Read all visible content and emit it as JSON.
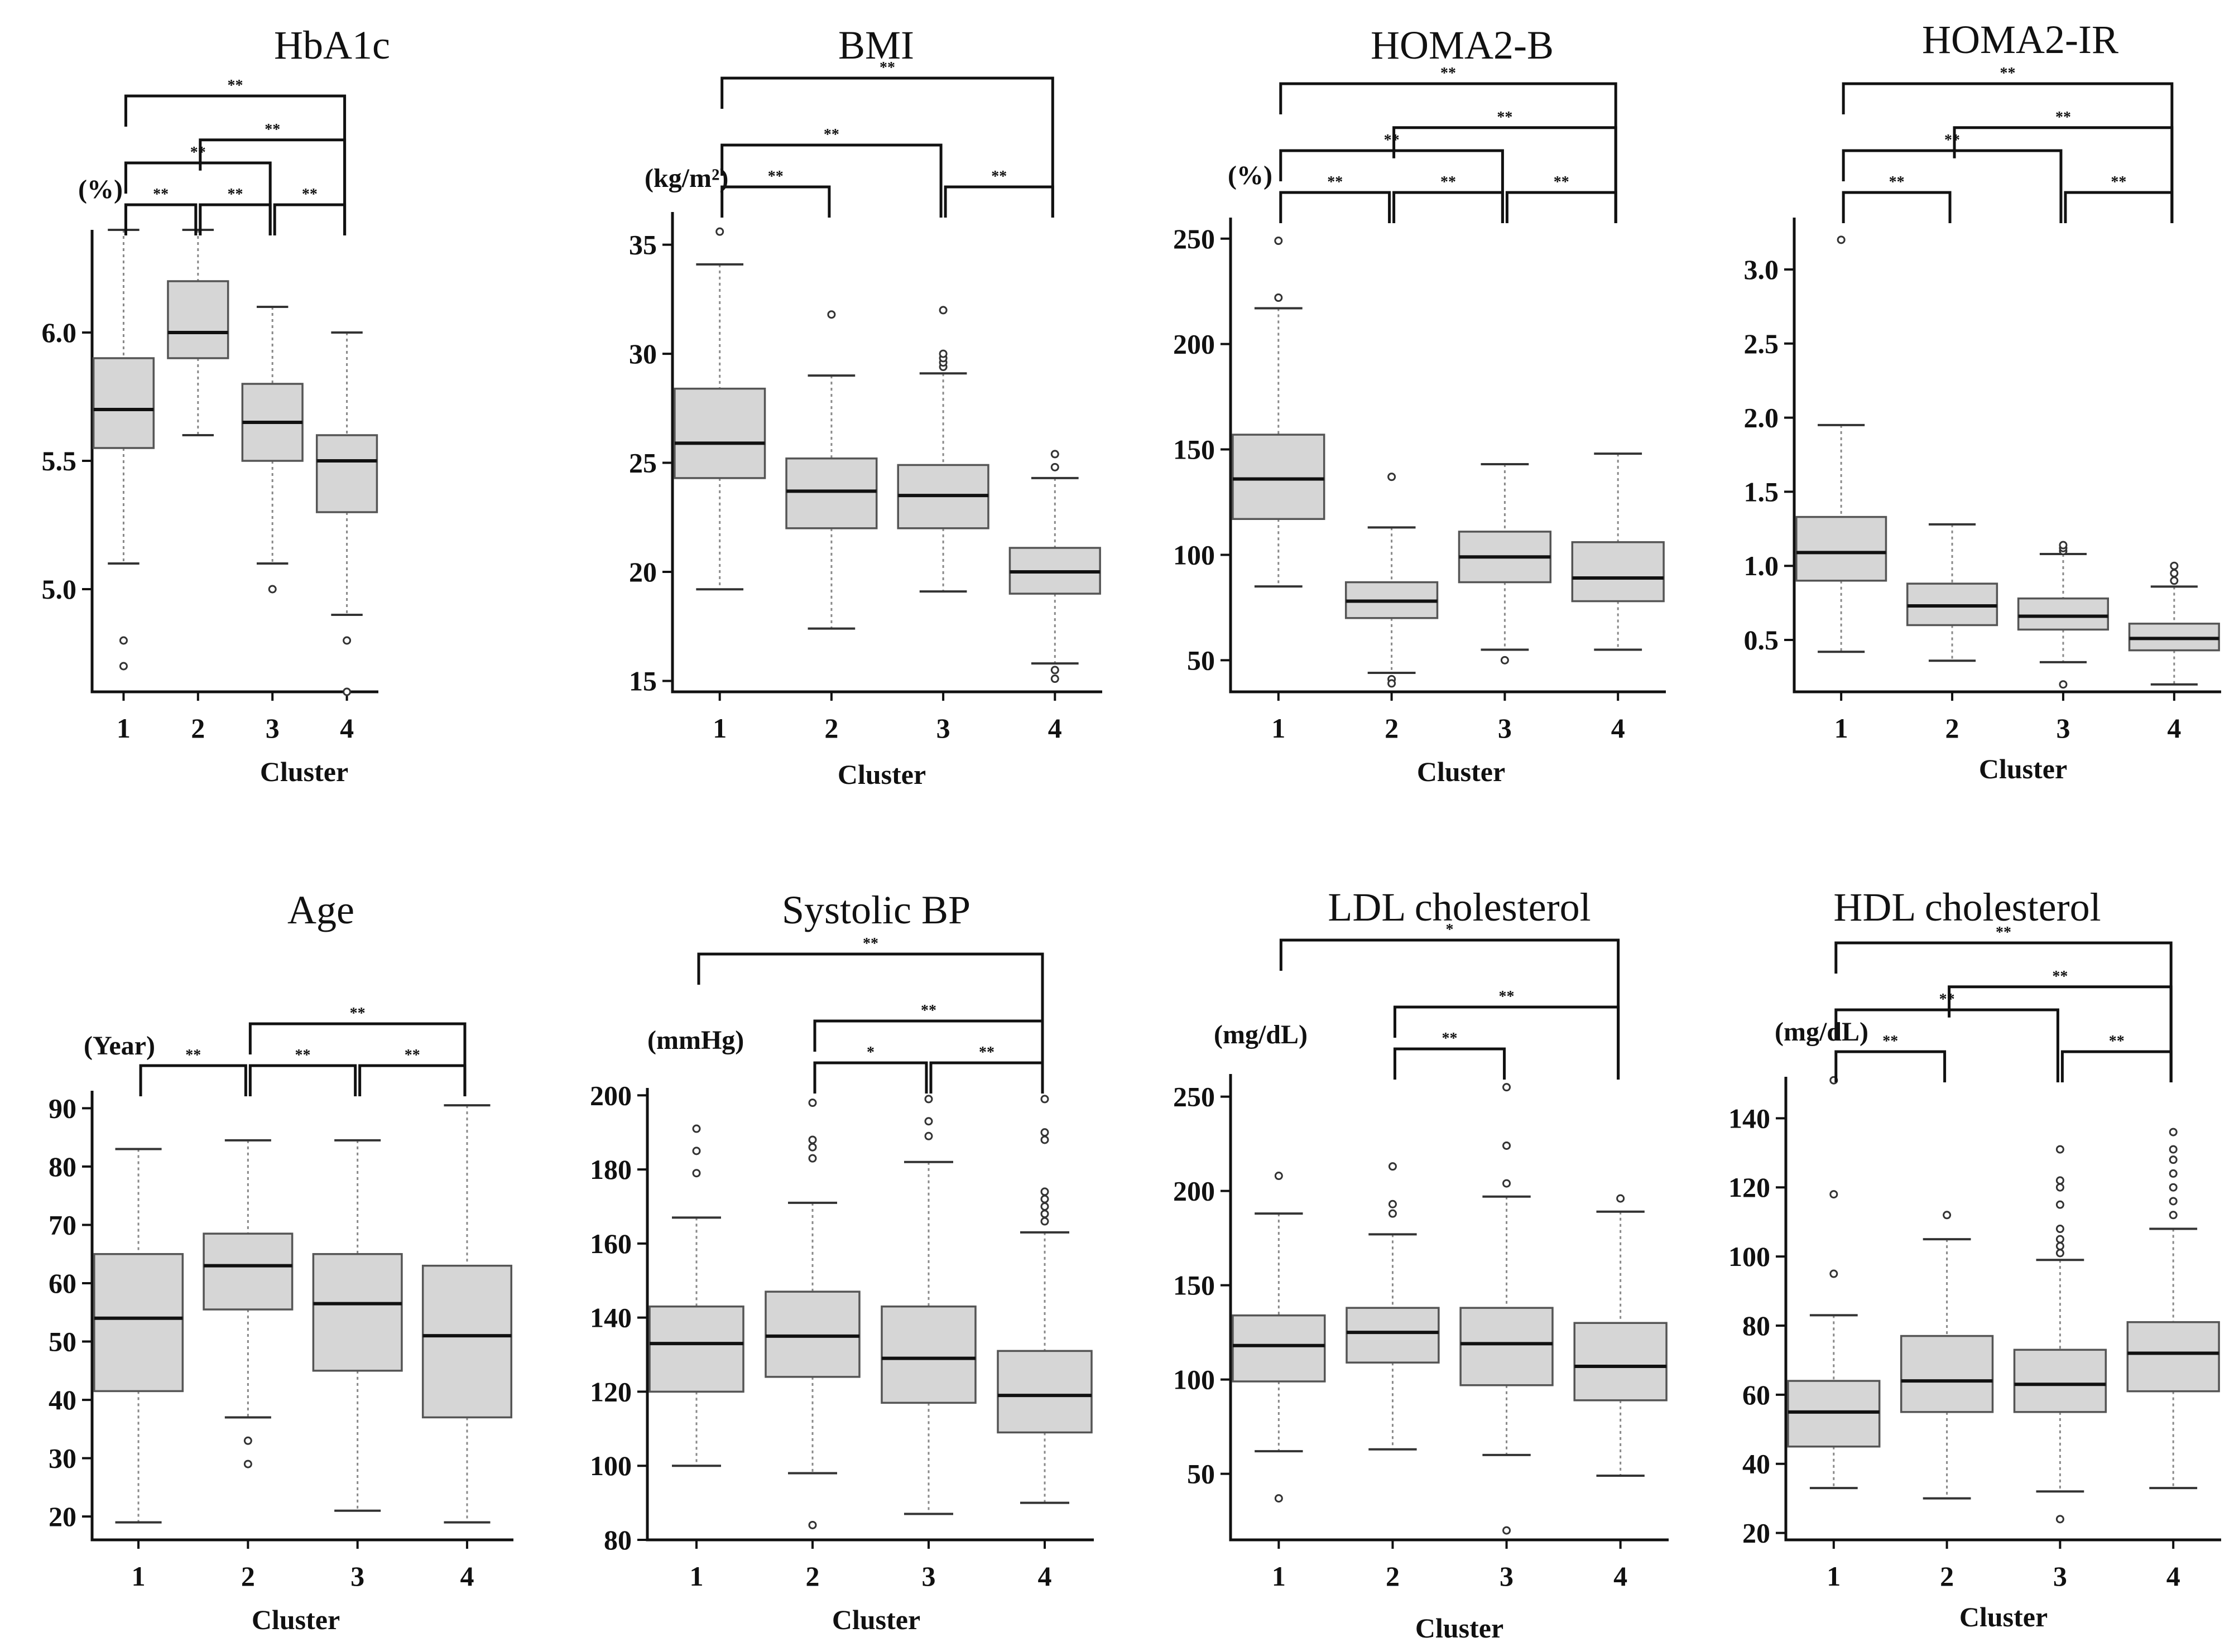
{
  "chart_data": [
    {
      "type": "box",
      "title": "HbA1c",
      "unit": "(%)",
      "xlabel": "Cluster",
      "categories": [
        "1",
        "2",
        "3",
        "4"
      ],
      "ylim": [
        4.6,
        6.4
      ],
      "yticks": [
        5.0,
        5.5,
        6.0
      ],
      "ytick_labels": [
        "5.0",
        "5.5",
        "6.0"
      ],
      "boxes": [
        {
          "q1": 5.55,
          "median": 5.7,
          "q3": 5.9,
          "whisker_low": 5.1,
          "whisker_high": 6.4,
          "outliers": [
            4.8,
            4.7
          ]
        },
        {
          "q1": 5.9,
          "median": 6.0,
          "q3": 6.2,
          "whisker_low": 5.6,
          "whisker_high": 6.4,
          "outliers": []
        },
        {
          "q1": 5.5,
          "median": 5.65,
          "q3": 5.8,
          "whisker_low": 5.1,
          "whisker_high": 6.1,
          "outliers": [
            5.0
          ]
        },
        {
          "q1": 5.3,
          "median": 5.5,
          "q3": 5.6,
          "whisker_low": 4.9,
          "whisker_high": 6.0,
          "outliers": [
            4.8,
            4.6
          ]
        }
      ],
      "significance": [
        {
          "from": 1,
          "to": 2,
          "label": "**"
        },
        {
          "from": 2,
          "to": 3,
          "label": "**"
        },
        {
          "from": 3,
          "to": 4,
          "label": "**"
        },
        {
          "from": 1,
          "to": 3,
          "label": "**"
        },
        {
          "from": 2,
          "to": 4,
          "label": "**"
        },
        {
          "from": 1,
          "to": 4,
          "label": "**"
        }
      ]
    },
    {
      "type": "box",
      "title": "BMI",
      "unit": "(kg/m²)",
      "xlabel": "Cluster",
      "categories": [
        "1",
        "2",
        "3",
        "4"
      ],
      "ylim": [
        14.5,
        36.5
      ],
      "yticks": [
        15,
        20,
        25,
        30,
        35
      ],
      "ytick_labels": [
        "15",
        "20",
        "25",
        "30",
        "35"
      ],
      "boxes": [
        {
          "q1": 24.3,
          "median": 25.9,
          "q3": 28.4,
          "whisker_low": 19.2,
          "whisker_high": 34.1,
          "outliers": [
            35.6
          ]
        },
        {
          "q1": 22.0,
          "median": 23.7,
          "q3": 25.2,
          "whisker_low": 17.4,
          "whisker_high": 29.0,
          "outliers": [
            31.8
          ]
        },
        {
          "q1": 22.0,
          "median": 23.5,
          "q3": 24.9,
          "whisker_low": 19.1,
          "whisker_high": 29.1,
          "outliers": [
            29.4,
            29.6,
            29.8,
            30.0,
            32.0
          ]
        },
        {
          "q1": 19.0,
          "median": 20.0,
          "q3": 21.1,
          "whisker_low": 15.8,
          "whisker_high": 24.3,
          "outliers": [
            24.8,
            25.4,
            15.5,
            15.1
          ]
        }
      ],
      "significance": [
        {
          "from": 1,
          "to": 2,
          "label": "**"
        },
        {
          "from": 3,
          "to": 4,
          "label": "**"
        },
        {
          "from": 1,
          "to": 3,
          "label": "**"
        },
        {
          "from": 1,
          "to": 4,
          "label": "**"
        }
      ]
    },
    {
      "type": "box",
      "title": "HOMA2-B",
      "unit": "(%)",
      "xlabel": "Cluster",
      "categories": [
        "1",
        "2",
        "3",
        "4"
      ],
      "ylim": [
        35,
        260
      ],
      "yticks": [
        50,
        100,
        150,
        200,
        250
      ],
      "ytick_labels": [
        "50",
        "100",
        "150",
        "200",
        "250"
      ],
      "boxes": [
        {
          "q1": 117,
          "median": 136,
          "q3": 157,
          "whisker_low": 85,
          "whisker_high": 217,
          "outliers": [
            222,
            249
          ]
        },
        {
          "q1": 70,
          "median": 78,
          "q3": 87,
          "whisker_low": 44,
          "whisker_high": 113,
          "outliers": [
            137,
            41,
            39
          ]
        },
        {
          "q1": 87,
          "median": 99,
          "q3": 111,
          "whisker_low": 55,
          "whisker_high": 143,
          "outliers": [
            50
          ]
        },
        {
          "q1": 78,
          "median": 89,
          "q3": 106,
          "whisker_low": 55,
          "whisker_high": 148,
          "outliers": []
        }
      ],
      "significance": [
        {
          "from": 1,
          "to": 2,
          "label": "**"
        },
        {
          "from": 2,
          "to": 3,
          "label": "**"
        },
        {
          "from": 3,
          "to": 4,
          "label": "**"
        },
        {
          "from": 1,
          "to": 3,
          "label": "**"
        },
        {
          "from": 2,
          "to": 4,
          "label": "**"
        },
        {
          "from": 1,
          "to": 4,
          "label": "**"
        }
      ]
    },
    {
      "type": "box",
      "title": "HOMA2-IR",
      "unit": "",
      "xlabel": "Cluster",
      "categories": [
        "1",
        "2",
        "3",
        "4"
      ],
      "ylim": [
        0.15,
        3.35
      ],
      "yticks": [
        0.5,
        1.0,
        1.5,
        2.0,
        2.5,
        3.0
      ],
      "ytick_labels": [
        "0.5",
        "1.0",
        "1.5",
        "2.0",
        "2.5",
        "3.0"
      ],
      "boxes": [
        {
          "q1": 0.9,
          "median": 1.09,
          "q3": 1.33,
          "whisker_low": 0.42,
          "whisker_high": 1.95,
          "outliers": [
            3.2
          ]
        },
        {
          "q1": 0.6,
          "median": 0.73,
          "q3": 0.88,
          "whisker_low": 0.36,
          "whisker_high": 1.28,
          "outliers": []
        },
        {
          "q1": 0.57,
          "median": 0.66,
          "q3": 0.78,
          "whisker_low": 0.35,
          "whisker_high": 1.08,
          "outliers": [
            1.1,
            1.12,
            1.14,
            0.2
          ]
        },
        {
          "q1": 0.43,
          "median": 0.51,
          "q3": 0.61,
          "whisker_low": 0.2,
          "whisker_high": 0.86,
          "outliers": [
            0.9,
            0.95,
            1.0
          ]
        }
      ],
      "significance": [
        {
          "from": 1,
          "to": 2,
          "label": "**"
        },
        {
          "from": 3,
          "to": 4,
          "label": "**"
        },
        {
          "from": 1,
          "to": 3,
          "label": "**"
        },
        {
          "from": 2,
          "to": 4,
          "label": "**"
        },
        {
          "from": 1,
          "to": 4,
          "label": "**"
        }
      ]
    },
    {
      "type": "box",
      "title": "Age",
      "unit": "(Year)",
      "xlabel": "Cluster",
      "categories": [
        "1",
        "2",
        "3",
        "4"
      ],
      "ylim": [
        16,
        93
      ],
      "yticks": [
        20,
        30,
        40,
        50,
        60,
        70,
        80,
        90
      ],
      "ytick_labels": [
        "20",
        "30",
        "40",
        "50",
        "60",
        "70",
        "80",
        "90"
      ],
      "boxes": [
        {
          "q1": 41.5,
          "median": 54,
          "q3": 65,
          "whisker_low": 19,
          "whisker_high": 83,
          "outliers": []
        },
        {
          "q1": 55.5,
          "median": 63,
          "q3": 68.5,
          "whisker_low": 37,
          "whisker_high": 84.5,
          "outliers": [
            33,
            29
          ]
        },
        {
          "q1": 45,
          "median": 56.5,
          "q3": 65,
          "whisker_low": 21,
          "whisker_high": 84.5,
          "outliers": []
        },
        {
          "q1": 37,
          "median": 51,
          "q3": 63,
          "whisker_low": 19,
          "whisker_high": 90.5,
          "outliers": []
        }
      ],
      "significance": [
        {
          "from": 1,
          "to": 2,
          "label": "**"
        },
        {
          "from": 2,
          "to": 3,
          "label": "**"
        },
        {
          "from": 3,
          "to": 4,
          "label": "**"
        },
        {
          "from": 2,
          "to": 4,
          "label": "**"
        }
      ]
    },
    {
      "type": "box",
      "title": "Systolic BP",
      "unit": "(mmHg)",
      "xlabel": "Cluster",
      "categories": [
        "1",
        "2",
        "3",
        "4"
      ],
      "ylim": [
        80,
        202
      ],
      "yticks": [
        80,
        100,
        120,
        140,
        160,
        180,
        200
      ],
      "ytick_labels": [
        "80",
        "100",
        "120",
        "140",
        "160",
        "180",
        "200"
      ],
      "boxes": [
        {
          "q1": 120,
          "median": 133,
          "q3": 143,
          "whisker_low": 100,
          "whisker_high": 167,
          "outliers": [
            179,
            185,
            191
          ]
        },
        {
          "q1": 124,
          "median": 135,
          "q3": 147,
          "whisker_low": 98,
          "whisker_high": 171,
          "outliers": [
            183,
            186,
            188,
            198,
            84
          ]
        },
        {
          "q1": 117,
          "median": 129,
          "q3": 143,
          "whisker_low": 87,
          "whisker_high": 182,
          "outliers": [
            189,
            193,
            199
          ]
        },
        {
          "q1": 109,
          "median": 119,
          "q3": 131,
          "whisker_low": 90,
          "whisker_high": 163,
          "outliers": [
            166,
            168,
            170,
            172,
            174,
            188,
            190,
            199
          ]
        }
      ],
      "significance": [
        {
          "from": 2,
          "to": 3,
          "label": "*"
        },
        {
          "from": 3,
          "to": 4,
          "label": "**"
        },
        {
          "from": 2,
          "to": 4,
          "label": "**"
        },
        {
          "from": 1,
          "to": 4,
          "label": "**"
        }
      ]
    },
    {
      "type": "box",
      "title": "LDL cholesterol",
      "unit": "(mg/dL)",
      "xlabel": "Cluster",
      "categories": [
        "1",
        "2",
        "3",
        "4"
      ],
      "ylim": [
        15,
        262
      ],
      "yticks": [
        50,
        100,
        150,
        200,
        250
      ],
      "ytick_labels": [
        "50",
        "100",
        "150",
        "200",
        "250"
      ],
      "boxes": [
        {
          "q1": 99,
          "median": 118,
          "q3": 134,
          "whisker_low": 62,
          "whisker_high": 188,
          "outliers": [
            208,
            37
          ]
        },
        {
          "q1": 109,
          "median": 125,
          "q3": 138,
          "whisker_low": 63,
          "whisker_high": 177,
          "outliers": [
            188,
            193,
            213
          ]
        },
        {
          "q1": 97,
          "median": 119,
          "q3": 138,
          "whisker_low": 60,
          "whisker_high": 197,
          "outliers": [
            204,
            224,
            255,
            20
          ]
        },
        {
          "q1": 89,
          "median": 107,
          "q3": 130,
          "whisker_low": 49,
          "whisker_high": 189,
          "outliers": [
            196
          ]
        }
      ],
      "significance": [
        {
          "from": 2,
          "to": 3,
          "label": "**"
        },
        {
          "from": 2,
          "to": 4,
          "label": "**"
        },
        {
          "from": 1,
          "to": 4,
          "label": "*"
        }
      ]
    },
    {
      "type": "box",
      "title": "HDL cholesterol",
      "unit": "(mg/dL)",
      "xlabel": "Cluster",
      "categories": [
        "1",
        "2",
        "3",
        "4"
      ],
      "ylim": [
        18,
        152
      ],
      "yticks": [
        20,
        40,
        60,
        80,
        100,
        120,
        140
      ],
      "ytick_labels": [
        "20",
        "40",
        "60",
        "80",
        "100",
        "120",
        "140"
      ],
      "boxes": [
        {
          "q1": 45,
          "median": 55,
          "q3": 64,
          "whisker_low": 33,
          "whisker_high": 83,
          "outliers": [
            95,
            118,
            151
          ]
        },
        {
          "q1": 55,
          "median": 64,
          "q3": 77,
          "whisker_low": 30,
          "whisker_high": 105,
          "outliers": [
            112
          ]
        },
        {
          "q1": 55,
          "median": 63,
          "q3": 73,
          "whisker_low": 32,
          "whisker_high": 99,
          "outliers": [
            101,
            103,
            105,
            108,
            115,
            120,
            122,
            131,
            24
          ]
        },
        {
          "q1": 61,
          "median": 72,
          "q3": 81,
          "whisker_low": 33,
          "whisker_high": 108,
          "outliers": [
            112,
            116,
            120,
            124,
            128,
            131,
            136
          ]
        }
      ],
      "significance": [
        {
          "from": 1,
          "to": 2,
          "label": "**"
        },
        {
          "from": 3,
          "to": 4,
          "label": "**"
        },
        {
          "from": 1,
          "to": 3,
          "label": "**"
        },
        {
          "from": 2,
          "to": 4,
          "label": "**"
        },
        {
          "from": 1,
          "to": 4,
          "label": "**"
        }
      ]
    }
  ]
}
